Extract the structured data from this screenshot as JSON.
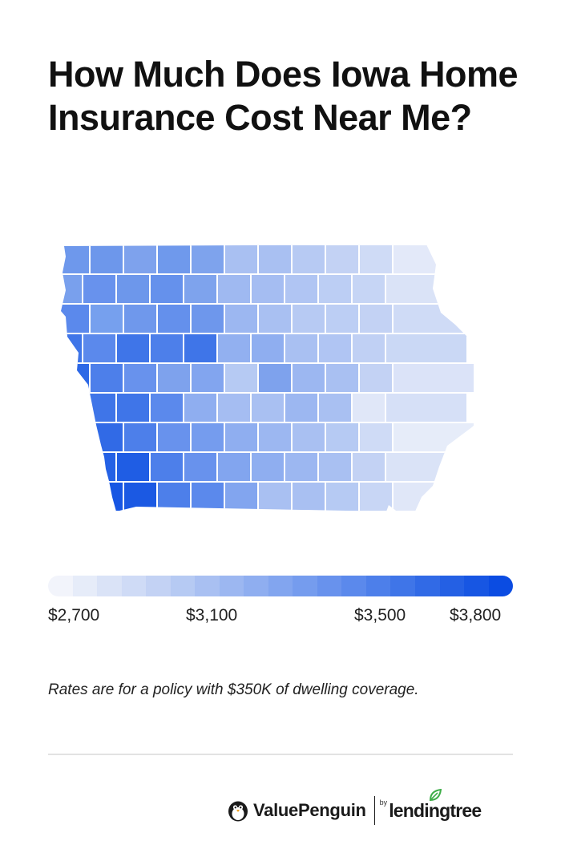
{
  "header": {
    "title": "How Much Does Iowa Home Insurance Cost Near Me?"
  },
  "map": {
    "legend": {
      "ticks": [
        "$2,700",
        "$3,100",
        "$3,500",
        "$3,800"
      ],
      "scale_colors": [
        "#f2f4fb",
        "#e6ecf9",
        "#dae3f7",
        "#cfdbf6",
        "#c3d2f4",
        "#b6caf3",
        "#a9c0f2",
        "#9cb7f1",
        "#8faef0",
        "#82a5ef",
        "#759cee",
        "#6892ed",
        "#5b89ec",
        "#4d7fea",
        "#3f75e8",
        "#316ae6",
        "#2460e4",
        "#1756e3",
        "#0b4ce2"
      ]
    },
    "county_rows": [
      [
        "#6e98ec",
        "#6d97eb",
        "#7ea2ed",
        "#6f99ec",
        "#7ea3ed",
        "#a9c0f2",
        "#a9c0f2",
        "#b7caf3",
        "#c3d2f4",
        "#cfdbf6",
        "#e3e9f9"
      ],
      [
        "#79a0ed",
        "#6892ed",
        "#6d97eb",
        "#6591ec",
        "#7ea3ed",
        "#9fb9f1",
        "#a5bdf2",
        "#b0c5f3",
        "#bccef4",
        "#c6d5f5",
        "#dae3f7"
      ],
      [
        "#5b89ec",
        "#76a0ee",
        "#6f98ec",
        "#6490ec",
        "#6e97ec",
        "#9cb7f1",
        "#a9c0f2",
        "#b7caf3",
        "#bccef4",
        "#c3d2f4",
        "#cfdbf6"
      ],
      [
        "#3f75e8",
        "#5b89ec",
        "#3f75e8",
        "#4d7fea",
        "#3f75e8",
        "#92b0f0",
        "#8faef0",
        "#a9c0f2",
        "#b0c5f3",
        "#c0d0f4",
        "#cad8f5"
      ],
      [
        "#2d68e6",
        "#4d7fea",
        "#6892ed",
        "#7ea2ed",
        "#82a5ef",
        "#b6caf3",
        "#7ea2ed",
        "#9cb7f1",
        "#a9c0f2",
        "#c3d2f4",
        "#dbe3f8"
      ],
      [
        "#1a58e3",
        "#3f75e8",
        "#3f75e8",
        "#5b89ec",
        "#8faef0",
        "#a5bdf2",
        "#a9c0f2",
        "#9cb7f1",
        "#a9c0f2",
        "#e0e7f8",
        "#d6e0f7"
      ],
      [
        "#0e4fe2",
        "#316ae6",
        "#4d7fea",
        "#6892ed",
        "#759cee",
        "#8faef0",
        "#9cb7f1",
        "#a9c0f2",
        "#b6caf3",
        "#cfdbf6",
        "#e6ecf9"
      ],
      [
        "#1a58e3",
        "#2461e5",
        "#1f5de4",
        "#4d7fea",
        "#6892ed",
        "#82a5ef",
        "#8faef0",
        "#9cb7f1",
        "#a9c0f2",
        "#c3d2f4",
        "#dae3f7"
      ],
      [
        "#0b4ce2",
        "#1756e3",
        "#1b59e3",
        "#4d7fea",
        "#5b89ec",
        "#82a5ef",
        "#a9c0f2",
        "#a9c0f2",
        "#b6caf3",
        "#c8d6f5",
        "#e0e7f8"
      ]
    ],
    "notes": "Rates are for a policy with $350K of dwelling coverage."
  },
  "footer": {
    "brand_name": "ValuePenguin",
    "by_label": "by",
    "partner_name": "lendingtree",
    "icons": [
      "penguin-icon",
      "leaf-icon"
    ]
  }
}
